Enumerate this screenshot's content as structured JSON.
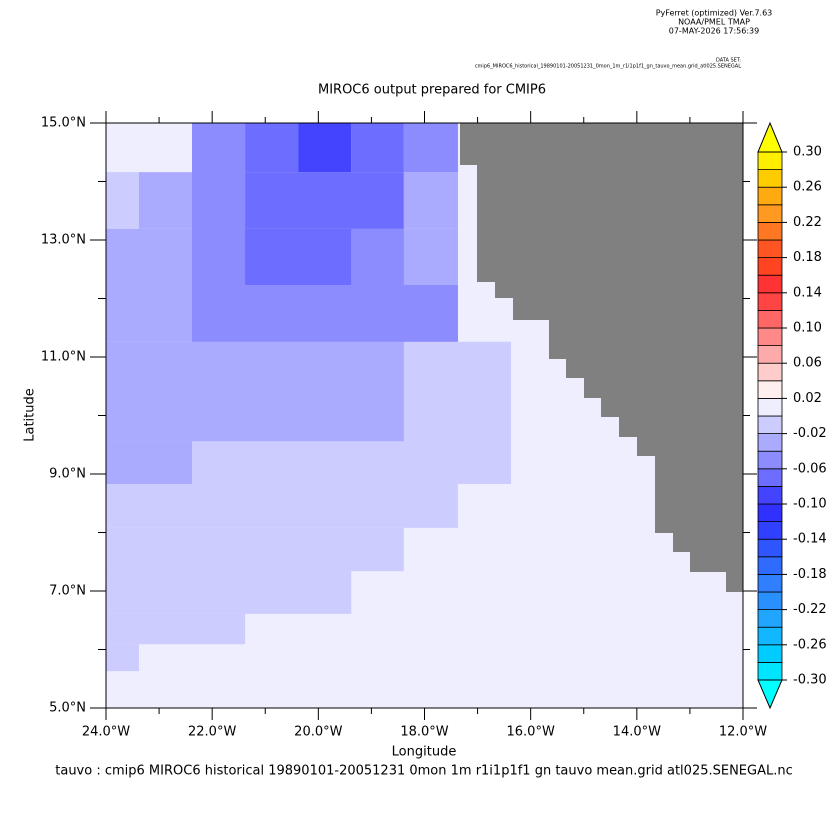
{
  "header": {
    "lines": [
      "PyFerret (optimized) Ver.7.63",
      "NOAA/PMEL TMAP",
      "07-MAY-2026 17:56:39"
    ],
    "dataset_label": "DATA SET:",
    "dataset": "cmip6_MIROC6_historical_19890101-20051231_0mon_1m_r1i1p1f1_gn_tauvo_mean.grid_atl025.SENEGAL"
  },
  "chart_data": {
    "type": "heatmap",
    "title": "MIROC6 output prepared for CMIP6",
    "x_label": "Longitude",
    "y_label": "Latitude",
    "footer": "tauvo : cmip6 MIROC6 historical 19890101-20051231 0mon 1m r1i1p1f1 gn tauvo mean.grid atl025.SENEGAL.nc",
    "xlim": [
      -24,
      -12
    ],
    "ylim": [
      5,
      15
    ],
    "xticks": [
      {
        "value": -24,
        "label": "24.0°W"
      },
      {
        "value": -22,
        "label": "22.0°W"
      },
      {
        "value": -20,
        "label": "20.0°W"
      },
      {
        "value": -18,
        "label": "18.0°W"
      },
      {
        "value": -16,
        "label": "16.0°W"
      },
      {
        "value": -14,
        "label": "14.0°W"
      },
      {
        "value": -12,
        "label": "12.0°W"
      }
    ],
    "yticks": [
      {
        "value": 5,
        "label": "5.0°N"
      },
      {
        "value": 7,
        "label": "7.0°N"
      },
      {
        "value": 9,
        "label": "9.0°N"
      },
      {
        "value": 11,
        "label": "11.0°N"
      },
      {
        "value": 13,
        "label": "13.0°N"
      },
      {
        "value": 15,
        "label": "15.0°N"
      }
    ],
    "xticks_minor": [
      -23,
      -21,
      -19,
      -17,
      -15,
      -13
    ],
    "yticks_minor": [
      6,
      8,
      10,
      12,
      14
    ],
    "land_color": "#808080",
    "cells": [
      {
        "x0": -24,
        "x1": -12,
        "y0": 5,
        "y1": 15,
        "value": 0.01
      },
      {
        "x0": -24,
        "x1": -16.37,
        "y0": 8.83,
        "y1": 11.26,
        "value": -0.01
      },
      {
        "x0": -24,
        "x1": -17.37,
        "y0": 8.08,
        "y1": 8.83,
        "value": -0.01
      },
      {
        "x0": -24,
        "x1": -18.39,
        "y0": 7.34,
        "y1": 8.08,
        "value": -0.01
      },
      {
        "x0": -24,
        "x1": -19.38,
        "y0": 6.61,
        "y1": 7.34,
        "value": -0.01
      },
      {
        "x0": -24,
        "x1": -21.38,
        "y0": 6.09,
        "y1": 6.61,
        "value": -0.01
      },
      {
        "x0": -24,
        "x1": -23.38,
        "y0": 5.63,
        "y1": 6.09,
        "value": -0.01
      },
      {
        "x0": -24,
        "x1": -23.38,
        "y0": 13.19,
        "y1": 14.16,
        "value": -0.01
      },
      {
        "x0": -24,
        "x1": -18.39,
        "y0": 9.56,
        "y1": 11.26,
        "value": -0.03
      },
      {
        "x0": -24,
        "x1": -22.38,
        "y0": 8.83,
        "y1": 9.56,
        "value": -0.03
      },
      {
        "x0": -24,
        "x1": -17.37,
        "y0": 11.26,
        "y1": 13.19,
        "value": -0.03
      },
      {
        "x0": -23.38,
        "x1": -22.38,
        "y0": 13.19,
        "y1": 14.16,
        "value": -0.03
      },
      {
        "x0": -18.39,
        "x1": -17.37,
        "y0": 13.19,
        "y1": 14.16,
        "value": -0.03
      },
      {
        "x0": -22.38,
        "x1": -17.37,
        "y0": 11.26,
        "y1": 12.23,
        "value": -0.05
      },
      {
        "x0": -22.38,
        "x1": -21.38,
        "y0": 12.23,
        "y1": 15,
        "value": -0.05
      },
      {
        "x0": -19.38,
        "x1": -18.39,
        "y0": 12.23,
        "y1": 13.19,
        "value": -0.05
      },
      {
        "x0": -18.39,
        "x1": -17.37,
        "y0": 14.16,
        "y1": 15,
        "value": -0.05
      },
      {
        "x0": -21.38,
        "x1": -19.38,
        "y0": 12.23,
        "y1": 13.19,
        "value": -0.07
      },
      {
        "x0": -21.38,
        "x1": -18.39,
        "y0": 13.19,
        "y1": 14.16,
        "value": -0.07
      },
      {
        "x0": -21.38,
        "x1": -20.38,
        "y0": 14.16,
        "y1": 15,
        "value": -0.07
      },
      {
        "x0": -19.38,
        "x1": -18.39,
        "y0": 14.16,
        "y1": 15,
        "value": -0.07
      },
      {
        "x0": -20.38,
        "x1": -19.38,
        "y0": 14.16,
        "y1": 15,
        "value": -0.09
      }
    ],
    "colorbar": {
      "clim": [
        -0.3,
        0.3
      ],
      "colors": [
        "#00e5ff",
        "#00ccff",
        "#11b8ff",
        "#22a5ff",
        "#2a90ff",
        "#2f7fff",
        "#2f6bff",
        "#2f55ff",
        "#3040ff",
        "#3030ff",
        "#4444ff",
        "#6d6dff",
        "#8c8cff",
        "#aaaaff",
        "#ccccff",
        "#eeeeff",
        "#ffeeee",
        "#ffcccc",
        "#ffaaaa",
        "#ff8888",
        "#ff6666",
        "#ff4444",
        "#ff3333",
        "#ff4422",
        "#ff5522",
        "#ff7722",
        "#ff9922",
        "#ffaa11",
        "#ffcc00",
        "#ffee00"
      ],
      "under_color": "#00ffff",
      "over_color": "#ffff00",
      "ticks": [
        {
          "value": 0.3,
          "label": "0.30"
        },
        {
          "value": 0.26,
          "label": "0.26"
        },
        {
          "value": 0.22,
          "label": "0.22"
        },
        {
          "value": 0.18,
          "label": "0.18"
        },
        {
          "value": 0.14,
          "label": "0.14"
        },
        {
          "value": 0.1,
          "label": "0.10"
        },
        {
          "value": 0.06,
          "label": "0.06"
        },
        {
          "value": 0.02,
          "label": "0.02"
        },
        {
          "value": -0.02,
          "label": "-0.02"
        },
        {
          "value": -0.06,
          "label": "-0.06"
        },
        {
          "value": -0.1,
          "label": "-0.10"
        },
        {
          "value": -0.14,
          "label": "-0.14"
        },
        {
          "value": -0.18,
          "label": "-0.18"
        },
        {
          "value": -0.22,
          "label": "-0.22"
        },
        {
          "value": -0.26,
          "label": "-0.26"
        },
        {
          "value": -0.3,
          "label": "-0.30"
        }
      ]
    }
  }
}
